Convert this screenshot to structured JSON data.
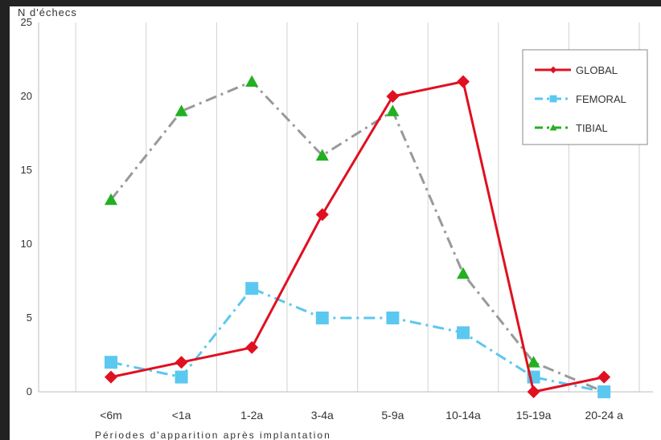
{
  "chart_data": {
    "type": "line",
    "ylabel": "N d'échecs",
    "xlabel": "Périodes d'apparition après implantation",
    "ylim": [
      0,
      25
    ],
    "yticks": [
      0,
      5,
      10,
      15,
      20,
      25
    ],
    "grid": "vertical",
    "legend_position": "top-right",
    "categories": [
      "<6m",
      "<1a",
      "1-2a",
      "3-4a",
      "5-9a",
      "10-14a",
      "15-19a",
      "20-24 a"
    ],
    "series": [
      {
        "name": "GLOBAL",
        "color": "#e01020",
        "marker": "diamond",
        "line": "solid",
        "values": [
          1,
          2,
          3,
          12,
          20,
          21,
          0,
          1
        ]
      },
      {
        "name": "FEMORAL",
        "color": "#5bc8f0",
        "marker": "square",
        "line": "dash-dot",
        "values": [
          2,
          1,
          7,
          5,
          5,
          4,
          1,
          0
        ]
      },
      {
        "name": "TIBIAL",
        "color": "#22b022",
        "marker": "triangle",
        "line": "dash-dot",
        "line_color": "#999999",
        "values": [
          13,
          19,
          21,
          16,
          19,
          8,
          2,
          0
        ]
      }
    ]
  }
}
